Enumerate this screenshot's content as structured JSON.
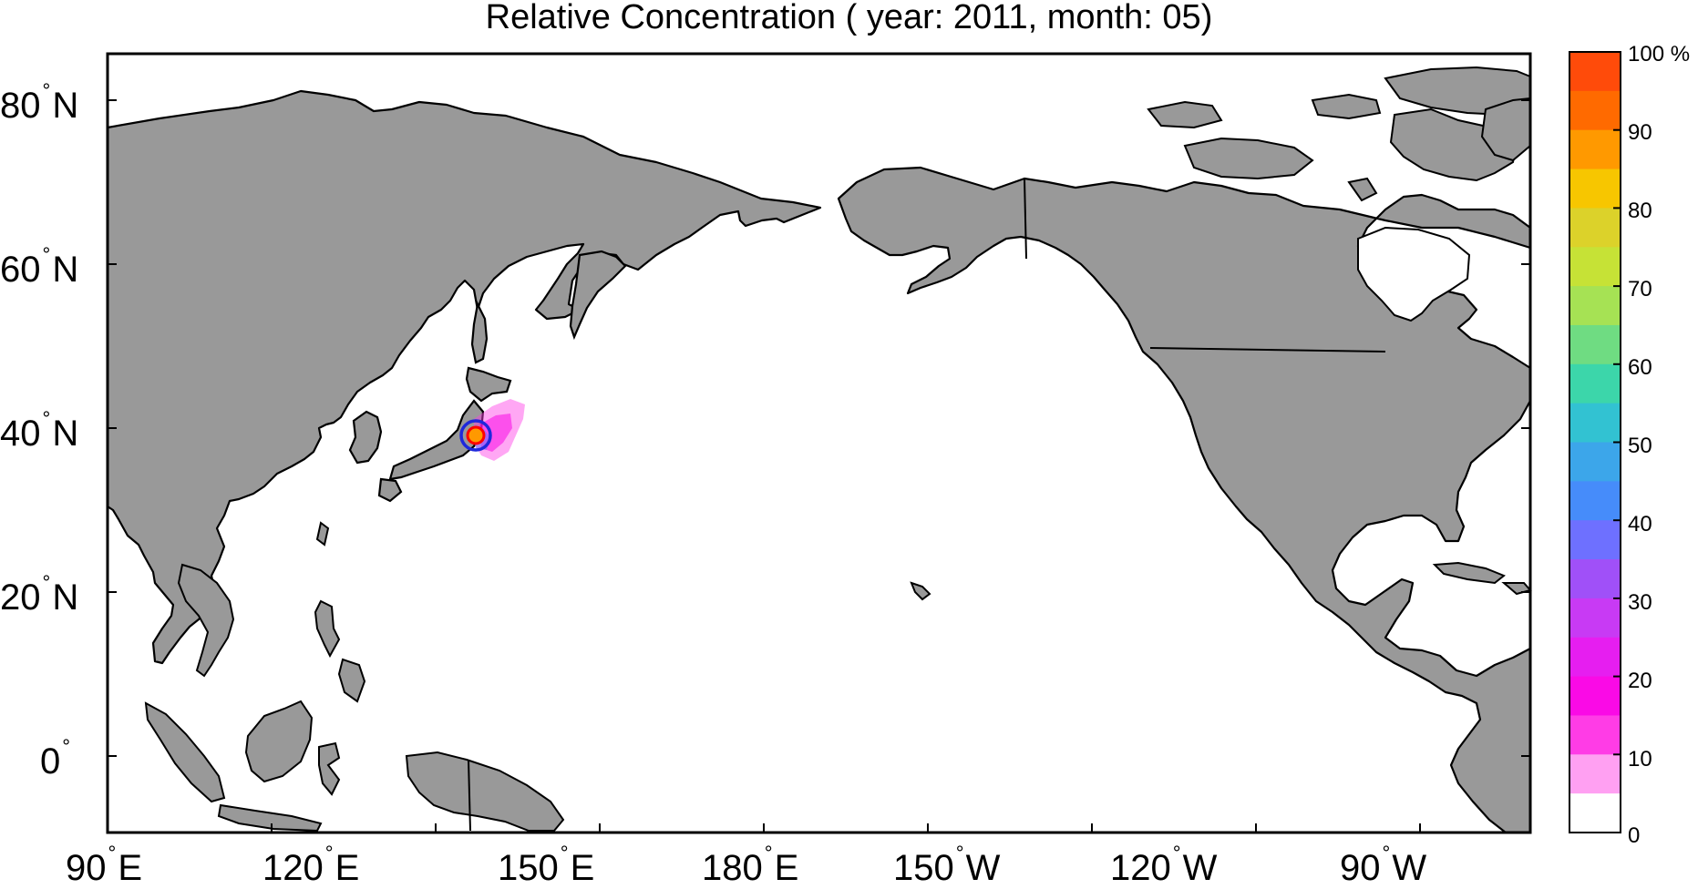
{
  "title": "Relative Concentration ( year: 2011, month: 05)",
  "lat_labels": [
    {
      "value": "80",
      "suffix": "N"
    },
    {
      "value": "60",
      "suffix": "N"
    },
    {
      "value": "40",
      "suffix": "N"
    },
    {
      "value": "20",
      "suffix": "N"
    },
    {
      "value": "0",
      "suffix": ""
    }
  ],
  "lon_labels": [
    {
      "value": "90",
      "suffix": "E"
    },
    {
      "value": "120",
      "suffix": "E"
    },
    {
      "value": "150",
      "suffix": "E"
    },
    {
      "value": "180",
      "suffix": "E"
    },
    {
      "value": "150",
      "suffix": "W"
    },
    {
      "value": "120",
      "suffix": "W"
    },
    {
      "value": "90",
      "suffix": "W"
    }
  ],
  "colorbar": {
    "labels": [
      "100 %",
      "90",
      "80",
      "70",
      "60",
      "50",
      "40",
      "30",
      "20",
      "10",
      "0"
    ],
    "colors_top_to_bottom": [
      "#ff4b0a",
      "#ff6a00",
      "#ff9900",
      "#f7c600",
      "#dcd22a",
      "#c6e236",
      "#a6e254",
      "#6fdc82",
      "#3cd6aa",
      "#32c2d2",
      "#3ca6ea",
      "#468cfa",
      "#6e70ff",
      "#a050f8",
      "#c83af4",
      "#e61ef0",
      "#fa0ae6",
      "#ff3ce6",
      "#ffa0f2",
      "#ffffff"
    ]
  },
  "markers": [
    {
      "name": "release-site",
      "lon": 141.0,
      "lat": 37.4
    }
  ],
  "colors": {
    "land": "#999999",
    "ocean": "#ffffff",
    "plume_high": "#ff6a00",
    "plume_low": "#ff3ce6",
    "ring_outer": "#1e28dc",
    "ring_inner": "#ff0000"
  }
}
